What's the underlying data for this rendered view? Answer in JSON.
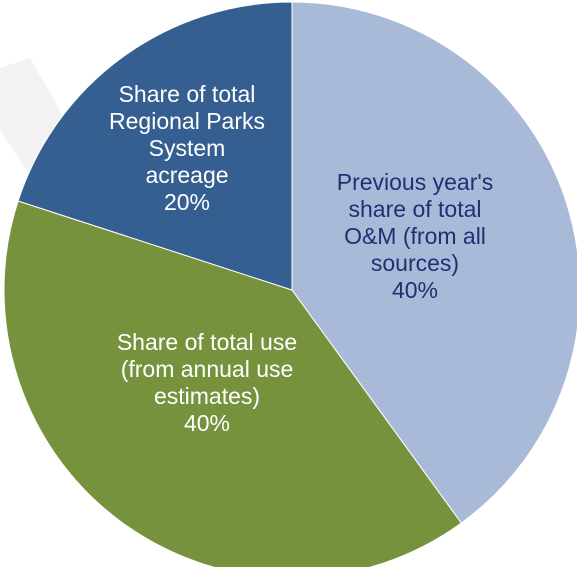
{
  "chart_data": {
    "type": "pie",
    "title": "",
    "legend": "none",
    "slices": [
      {
        "lines": [
          "Previous year's",
          "share of total",
          "O&M (from all",
          "sources)",
          "40%"
        ],
        "value": 40,
        "color": "#a9b9d8",
        "label_color": "#1f3173"
      },
      {
        "lines": [
          "Share of total use",
          "(from annual use",
          "estimates)",
          "40%"
        ],
        "value": 40,
        "color": "#76923c",
        "label_color": "#ffffff"
      },
      {
        "lines": [
          "Share of total",
          "Regional Parks",
          "System",
          "acreage",
          "20%"
        ],
        "value": 20,
        "color": "#365f91",
        "label_color": "#ffffff"
      }
    ]
  }
}
